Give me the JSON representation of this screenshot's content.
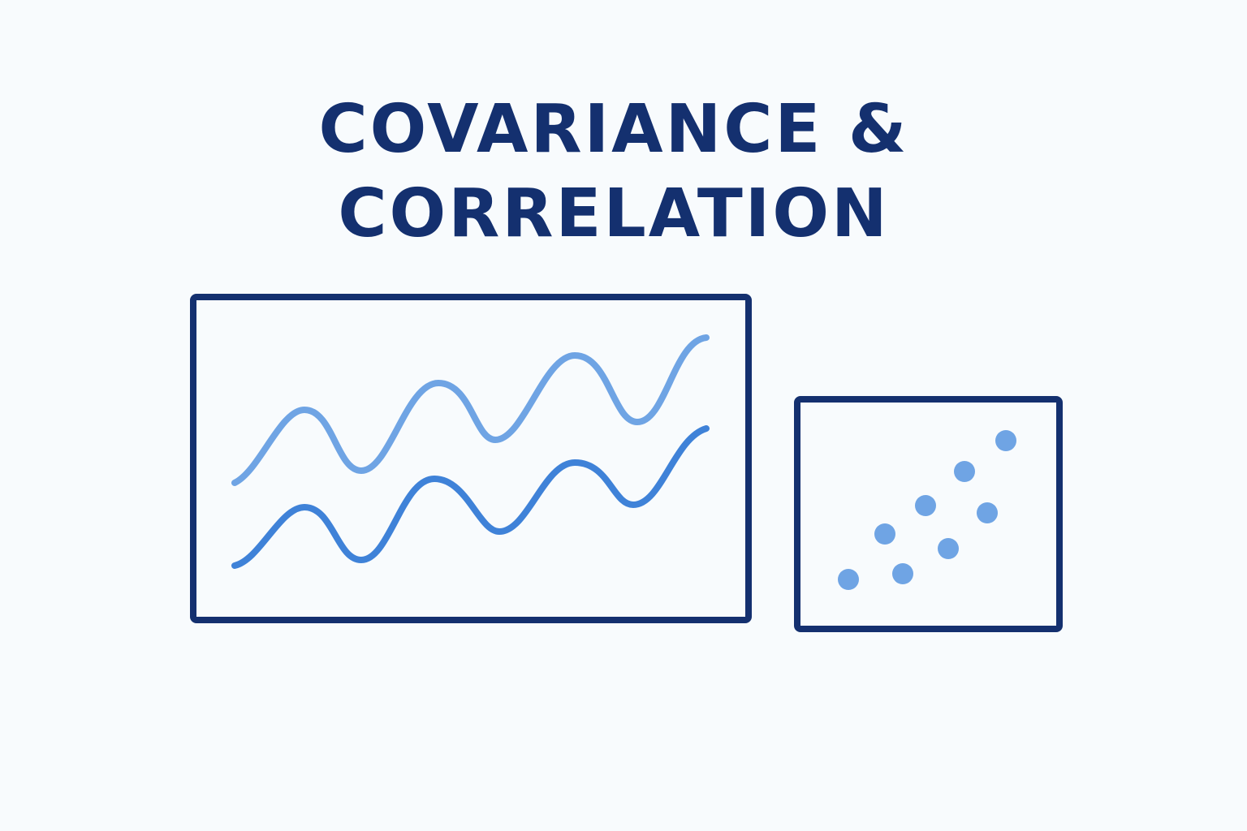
{
  "title": {
    "line1": "COVARIANCE &",
    "line2": "CORRELATION"
  },
  "colors": {
    "background": "#f8fbfd",
    "frame": "#14306f",
    "light_wave": "#6fa4e4",
    "dark_wave": "#3f82d8",
    "dots": "#6fa4e4"
  },
  "icons": {
    "left_panel": "two-wave-lines-icon",
    "right_panel": "scatter-plot-icon"
  }
}
